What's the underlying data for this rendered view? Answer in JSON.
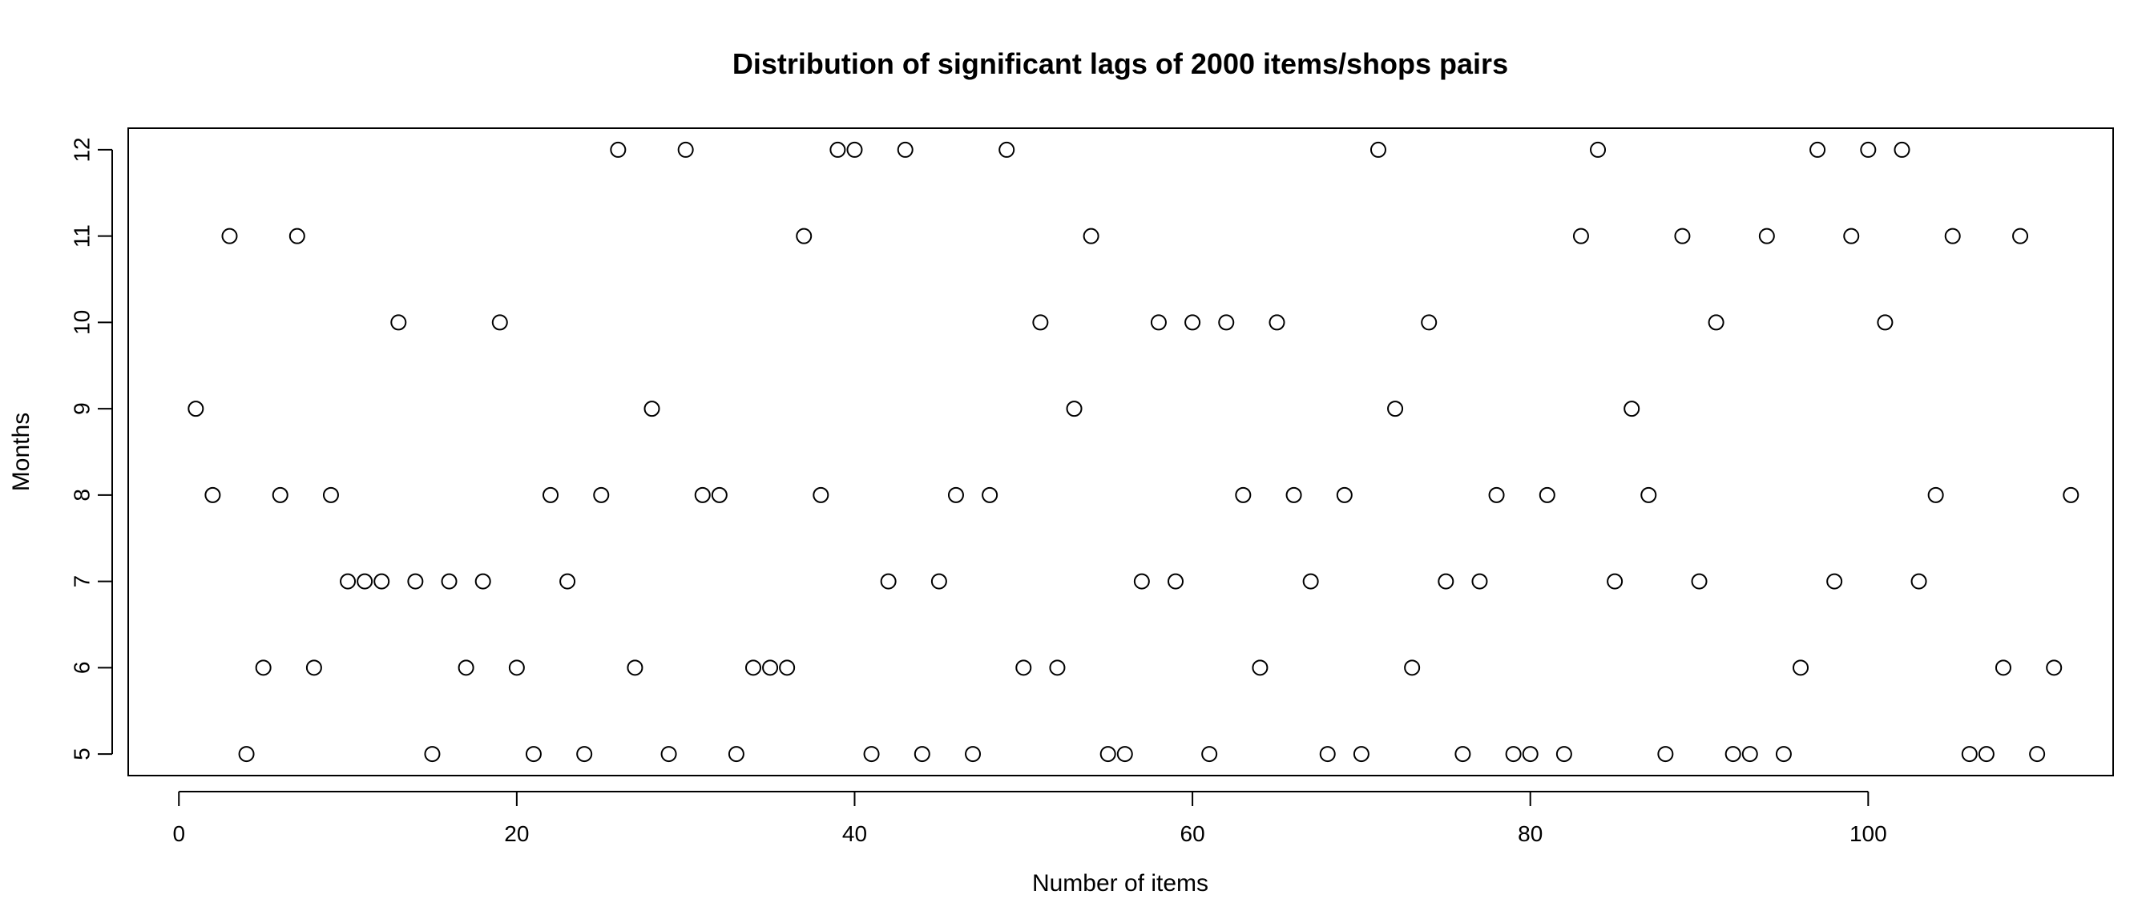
{
  "chart_data": {
    "type": "scatter",
    "title": "Distribution of significant lags of 2000 items/shops pairs",
    "xlabel": "Number of items",
    "ylabel": "Months",
    "xlim": [
      -3,
      114.5
    ],
    "ylim": [
      4.75,
      12.25
    ],
    "x_ticks": [
      0,
      20,
      40,
      60,
      80,
      100
    ],
    "y_ticks": [
      5,
      6,
      7,
      8,
      9,
      10,
      11,
      12
    ],
    "grid": false,
    "legend": "none",
    "marker": "open-circle",
    "color": "#000000",
    "points": [
      [
        1,
        9
      ],
      [
        2,
        8
      ],
      [
        3,
        11
      ],
      [
        4,
        5
      ],
      [
        5,
        6
      ],
      [
        6,
        8
      ],
      [
        7,
        11
      ],
      [
        8,
        6
      ],
      [
        9,
        8
      ],
      [
        10,
        7
      ],
      [
        11,
        7
      ],
      [
        12,
        7
      ],
      [
        13,
        10
      ],
      [
        14,
        7
      ],
      [
        15,
        5
      ],
      [
        16,
        7
      ],
      [
        17,
        6
      ],
      [
        18,
        7
      ],
      [
        19,
        10
      ],
      [
        20,
        6
      ],
      [
        21,
        5
      ],
      [
        22,
        8
      ],
      [
        23,
        7
      ],
      [
        24,
        5
      ],
      [
        25,
        8
      ],
      [
        26,
        12
      ],
      [
        27,
        6
      ],
      [
        28,
        9
      ],
      [
        29,
        5
      ],
      [
        30,
        12
      ],
      [
        31,
        8
      ],
      [
        32,
        8
      ],
      [
        33,
        5
      ],
      [
        34,
        6
      ],
      [
        35,
        6
      ],
      [
        36,
        6
      ],
      [
        37,
        11
      ],
      [
        38,
        8
      ],
      [
        39,
        12
      ],
      [
        40,
        12
      ],
      [
        41,
        5
      ],
      [
        42,
        7
      ],
      [
        43,
        12
      ],
      [
        44,
        5
      ],
      [
        45,
        7
      ],
      [
        46,
        8
      ],
      [
        47,
        5
      ],
      [
        48,
        8
      ],
      [
        49,
        12
      ],
      [
        50,
        6
      ],
      [
        51,
        10
      ],
      [
        52,
        6
      ],
      [
        53,
        9
      ],
      [
        54,
        11
      ],
      [
        55,
        5
      ],
      [
        56,
        5
      ],
      [
        57,
        7
      ],
      [
        58,
        10
      ],
      [
        59,
        7
      ],
      [
        60,
        10
      ],
      [
        61,
        5
      ],
      [
        62,
        10
      ],
      [
        63,
        8
      ],
      [
        64,
        6
      ],
      [
        65,
        10
      ],
      [
        66,
        8
      ],
      [
        67,
        7
      ],
      [
        68,
        5
      ],
      [
        69,
        8
      ],
      [
        70,
        5
      ],
      [
        71,
        12
      ],
      [
        72,
        9
      ],
      [
        73,
        6
      ],
      [
        74,
        10
      ],
      [
        75,
        7
      ],
      [
        76,
        5
      ],
      [
        77,
        7
      ],
      [
        78,
        8
      ],
      [
        79,
        5
      ],
      [
        80,
        5
      ],
      [
        81,
        8
      ],
      [
        82,
        5
      ],
      [
        83,
        11
      ],
      [
        84,
        12
      ],
      [
        85,
        7
      ],
      [
        86,
        9
      ],
      [
        87,
        8
      ],
      [
        88,
        5
      ],
      [
        89,
        11
      ],
      [
        90,
        7
      ],
      [
        91,
        10
      ],
      [
        92,
        5
      ],
      [
        93,
        5
      ],
      [
        94,
        11
      ],
      [
        95,
        5
      ],
      [
        96,
        6
      ],
      [
        97,
        12
      ],
      [
        98,
        7
      ],
      [
        99,
        11
      ],
      [
        100,
        12
      ],
      [
        101,
        10
      ],
      [
        102,
        12
      ],
      [
        103,
        7
      ],
      [
        104,
        8
      ],
      [
        105,
        11
      ],
      [
        106,
        5
      ],
      [
        107,
        5
      ],
      [
        108,
        6
      ],
      [
        109,
        11
      ],
      [
        110,
        5
      ],
      [
        111,
        6
      ],
      [
        112,
        8
      ]
    ]
  }
}
